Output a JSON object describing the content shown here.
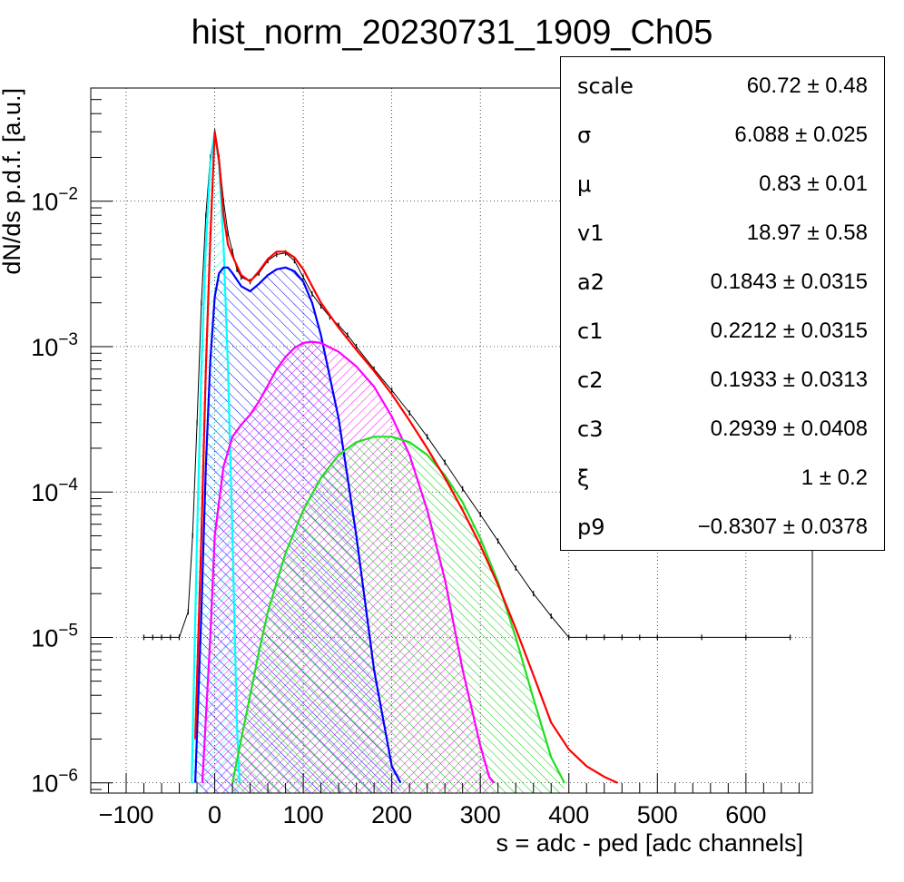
{
  "chart_data": {
    "type": "line",
    "title": "hist_norm_20230731_1909_Ch05",
    "xlabel": "s = adc - ped [adc channels]",
    "ylabel": "dN/ds p.d.f. [a.u.]",
    "xlim": [
      -140,
      675
    ],
    "ylim": [
      8.5e-07,
      0.06
    ],
    "yscale": "log",
    "grid": true,
    "x_ticks": [
      -100,
      0,
      100,
      200,
      300,
      400,
      500,
      600
    ],
    "x_tick_labels": [
      "−100",
      "0",
      "100",
      "200",
      "300",
      "400",
      "500",
      "600"
    ],
    "y_ticks": [
      {
        "value": 1e-06,
        "base": "10",
        "exp": "−6"
      },
      {
        "value": 1e-05,
        "base": "10",
        "exp": "−5"
      },
      {
        "value": 0.0001,
        "base": "10",
        "exp": "−4"
      },
      {
        "value": 0.001,
        "base": "10",
        "exp": "−3"
      },
      {
        "value": 0.01,
        "base": "10",
        "exp": "−2"
      }
    ],
    "histogram": {
      "color": "#000000",
      "x": [
        -80,
        -70,
        -60,
        -50,
        -40,
        -30,
        -25,
        -20,
        -15,
        -10,
        -5,
        0,
        5,
        10,
        15,
        20,
        25,
        30,
        40,
        50,
        60,
        70,
        80,
        90,
        100,
        110,
        120,
        130,
        140,
        150,
        160,
        180,
        200,
        220,
        240,
        260,
        280,
        300,
        320,
        340,
        360,
        380,
        400,
        420,
        440,
        460,
        480,
        500,
        550,
        600,
        650
      ],
      "y": [
        1e-05,
        1e-05,
        1e-05,
        1e-05,
        1e-05,
        1.5e-05,
        5e-05,
        0.0003,
        0.002,
        0.008,
        0.02,
        0.03,
        0.02,
        0.01,
        0.006,
        0.0045,
        0.0034,
        0.003,
        0.0028,
        0.0032,
        0.0039,
        0.0043,
        0.0044,
        0.0039,
        0.003,
        0.0023,
        0.0019,
        0.0016,
        0.0014,
        0.0012,
        0.001,
        0.0007,
        0.0005,
        0.00035,
        0.00024,
        0.00016,
        0.000105,
        7e-05,
        4.6e-05,
        3e-05,
        2e-05,
        1.4e-05,
        1e-05,
        1e-05,
        1e-05,
        1e-05,
        1e-05,
        1e-05,
        1e-05,
        1e-05,
        1e-05
      ]
    },
    "series": [
      {
        "color": "#00ffff",
        "fill": true,
        "x": [
          -26,
          -20,
          -15,
          -10,
          -5,
          0,
          5,
          10,
          15,
          20,
          25,
          28
        ],
        "y": [
          1e-06,
          5e-05,
          0.0007,
          0.005,
          0.018,
          0.03,
          0.018,
          0.005,
          0.0007,
          5e-05,
          2.5e-06,
          1e-06
        ]
      },
      {
        "color": "#0000ff",
        "fill": true,
        "x": [
          -22,
          -15,
          -10,
          -5,
          0,
          5,
          10,
          15,
          20,
          30,
          40,
          50,
          60,
          70,
          80,
          90,
          100,
          110,
          120,
          140,
          160,
          180,
          200,
          210
        ],
        "y": [
          1e-06,
          1.5e-05,
          0.00015,
          0.0008,
          0.0022,
          0.0032,
          0.0035,
          0.0035,
          0.0032,
          0.0026,
          0.0024,
          0.0027,
          0.0031,
          0.0034,
          0.0035,
          0.0033,
          0.0028,
          0.002,
          0.0012,
          0.00032,
          5e-05,
          6e-06,
          1.3e-06,
          1e-06
        ]
      },
      {
        "color": "#ff00ff",
        "fill": true,
        "x": [
          -14,
          -5,
          0,
          10,
          20,
          30,
          40,
          50,
          60,
          70,
          80,
          90,
          100,
          110,
          120,
          140,
          160,
          180,
          200,
          220,
          240,
          260,
          280,
          300,
          310,
          315
        ],
        "y": [
          1e-06,
          1e-05,
          5e-05,
          0.00015,
          0.00024,
          0.00029,
          0.00034,
          0.00042,
          0.00054,
          0.0007,
          0.00085,
          0.00098,
          0.00106,
          0.00108,
          0.00106,
          0.00092,
          0.00073,
          0.00053,
          0.00033,
          0.00018,
          7.5e-05,
          2.5e-05,
          6e-06,
          1.8e-06,
          1.1e-06,
          1e-06
        ]
      },
      {
        "color": "#00ff00",
        "fill": true,
        "x": [
          20,
          30,
          40,
          50,
          60,
          80,
          100,
          120,
          140,
          160,
          180,
          200,
          220,
          240,
          260,
          280,
          300,
          320,
          340,
          360,
          380,
          395
        ],
        "y": [
          1e-06,
          2e-06,
          4e-06,
          8e-06,
          1.5e-05,
          3.8e-05,
          7.5e-05,
          0.000125,
          0.00018,
          0.00022,
          0.00024,
          0.00024,
          0.00022,
          0.00018,
          0.00013,
          8.5e-05,
          4.8e-05,
          2.4e-05,
          1e-05,
          3.8e-06,
          1.5e-06,
          1e-06
        ]
      },
      {
        "color": "#ff0000",
        "fill": false,
        "x": [
          -22,
          -15,
          -10,
          -5,
          0,
          5,
          10,
          15,
          20,
          30,
          40,
          50,
          60,
          70,
          80,
          90,
          100,
          110,
          120,
          140,
          160,
          180,
          200,
          220,
          240,
          260,
          280,
          300,
          320,
          340,
          360,
          380,
          400,
          420,
          440,
          455
        ],
        "y": [
          2e-06,
          5e-05,
          0.0007,
          0.0055,
          0.03,
          0.019,
          0.008,
          0.005,
          0.0042,
          0.0031,
          0.0028,
          0.0033,
          0.004,
          0.0045,
          0.0045,
          0.0041,
          0.0034,
          0.0026,
          0.002,
          0.00135,
          0.00095,
          0.00068,
          0.00047,
          0.00031,
          0.0002,
          0.000125,
          7.5e-05,
          4.3e-05,
          2.3e-05,
          1.15e-05,
          5.5e-06,
          2.6e-06,
          1.7e-06,
          1.3e-06,
          1.1e-06,
          1e-06
        ]
      }
    ]
  },
  "stats": [
    {
      "name": "scale",
      "value": "60.72 ± 0.48"
    },
    {
      "name": "σ",
      "value": "6.088 ± 0.025"
    },
    {
      "name": "μ",
      "value": "0.83 ± 0.01"
    },
    {
      "name": "v1",
      "value": "18.97 ± 0.58"
    },
    {
      "name": "a2",
      "value": "0.1843 ± 0.0315"
    },
    {
      "name": "c1",
      "value": "0.2212 ± 0.0315"
    },
    {
      "name": "c2",
      "value": "0.1933 ± 0.0313"
    },
    {
      "name": "c3",
      "value": "0.2939 ± 0.0408"
    },
    {
      "name": "ξ",
      "value": "1 ± 0.2"
    },
    {
      "name": "p9",
      "value": "−0.8307 ± 0.0378"
    }
  ]
}
